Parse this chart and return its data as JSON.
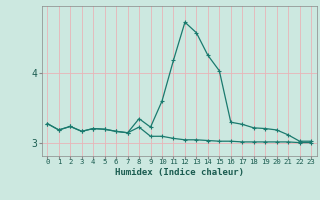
{
  "xlabel": "Humidex (Indice chaleur)",
  "bg_color": "#cce8e0",
  "line_color": "#1a7a6e",
  "grid_color_v": "#e8b4b8",
  "grid_color_h": "#e8b4b8",
  "x_values": [
    0,
    1,
    2,
    3,
    4,
    5,
    6,
    7,
    8,
    9,
    10,
    11,
    12,
    13,
    14,
    15,
    16,
    17,
    18,
    19,
    20,
    21,
    22,
    23
  ],
  "line1_y": [
    3.28,
    3.19,
    3.24,
    3.17,
    3.21,
    3.2,
    3.17,
    3.15,
    3.23,
    3.1,
    3.1,
    3.07,
    3.05,
    3.05,
    3.04,
    3.03,
    3.03,
    3.02,
    3.02,
    3.02,
    3.02,
    3.02,
    3.01,
    3.01
  ],
  "line2_y": [
    3.28,
    3.19,
    3.24,
    3.17,
    3.21,
    3.2,
    3.17,
    3.15,
    3.35,
    3.23,
    3.6,
    4.18,
    4.72,
    4.57,
    4.25,
    4.03,
    3.3,
    3.27,
    3.22,
    3.21,
    3.19,
    3.12,
    3.03,
    3.03
  ],
  "ylim": [
    2.82,
    4.95
  ],
  "yticks": [
    3.0,
    4.0
  ],
  "xlim": [
    -0.5,
    23.5
  ]
}
